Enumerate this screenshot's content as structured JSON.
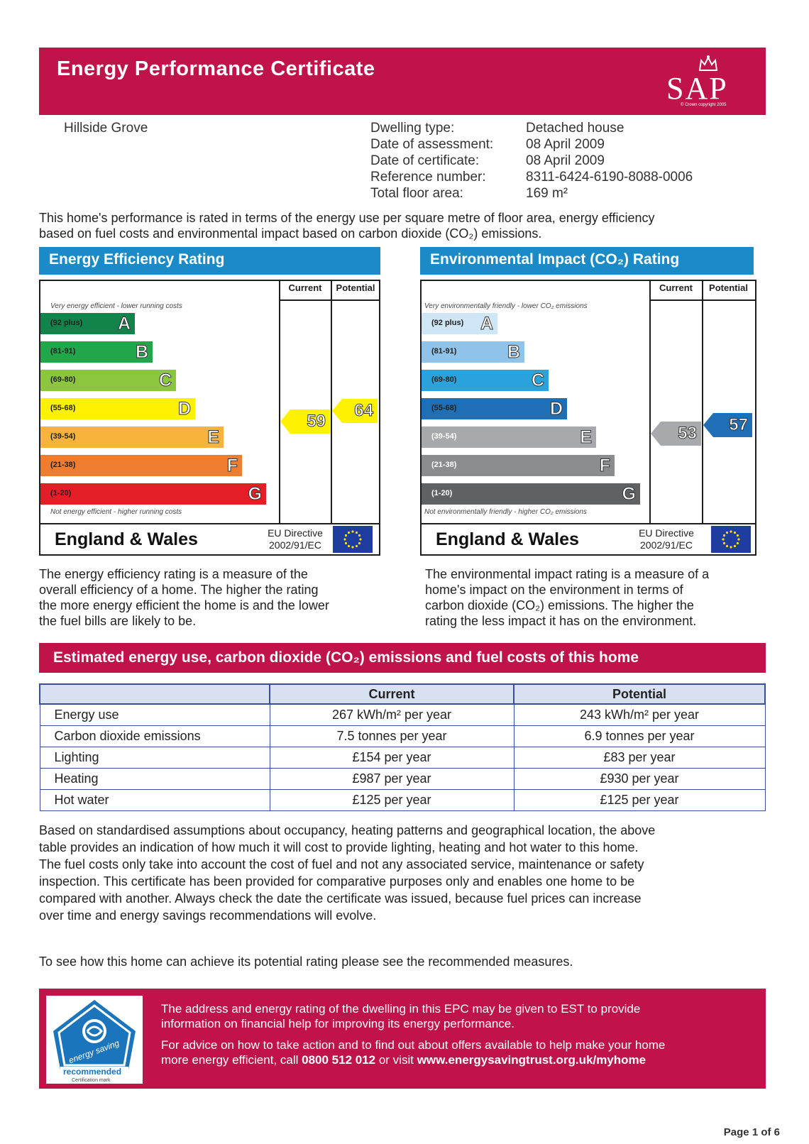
{
  "header": {
    "title": "Energy Performance Certificate",
    "logo_text": "SAP",
    "logo_copyright": "© Crown copyright 2005"
  },
  "property": {
    "address": "Hillside Grove",
    "fields": [
      {
        "label": "Dwelling type:",
        "value": "Detached house"
      },
      {
        "label": "Date of assessment:",
        "value": "08 April 2009"
      },
      {
        "label": "Date of certificate:",
        "value": "08 April 2009"
      },
      {
        "label": "Reference number:",
        "value": "8311-6424-6190-8088-0006"
      },
      {
        "label": "Total floor area:",
        "value": "169 m²"
      }
    ]
  },
  "intro": {
    "line1": "This home's performance is rated in terms of the energy use per square metre of floor area, energy efficiency",
    "line2": "based on fuel costs and environmental impact based on carbon dioxide  (CO₂) emissions."
  },
  "energy_chart": {
    "heading": "Energy Efficiency Rating",
    "col_current": "Current",
    "col_potential": "Potential",
    "top_note": "Very energy efficient - lower running costs",
    "bottom_note": "Not energy efficient - higher running costs",
    "bands": [
      {
        "range": "(92 plus)",
        "letter": "A",
        "color": "#12834a"
      },
      {
        "range": "(81-91)",
        "letter": "B",
        "color": "#22a64a"
      },
      {
        "range": "(69-80)",
        "letter": "C",
        "color": "#8cc63f"
      },
      {
        "range": "(55-68)",
        "letter": "D",
        "color": "#fff200"
      },
      {
        "range": "(39-54)",
        "letter": "E",
        "color": "#f8b33c"
      },
      {
        "range": "(21-38)",
        "letter": "F",
        "color": "#ef7d2f"
      },
      {
        "range": "(1-20)",
        "letter": "G",
        "color": "#e31e26"
      }
    ],
    "current": "59",
    "current_color": "#fff200",
    "potential": "64",
    "potential_color": "#fff200",
    "region": "England & Wales",
    "directive_line1": "EU Directive",
    "directive_line2": "2002/91/EC"
  },
  "env_chart": {
    "heading": "Environmental Impact (CO₂) Rating",
    "col_current": "Current",
    "col_potential": "Potential",
    "top_note": "Very environmentally friendly - lower  CO₂ emissions",
    "bottom_note": "Not environmentally friendly - higher  CO₂ emissions",
    "bands": [
      {
        "range": "(92 plus)",
        "letter": "A",
        "color": "#cfe6f6"
      },
      {
        "range": "(81-91)",
        "letter": "B",
        "color": "#8fc3ea"
      },
      {
        "range": "(69-80)",
        "letter": "C",
        "color": "#2aa3dc"
      },
      {
        "range": "(55-68)",
        "letter": "D",
        "color": "#1f6fb7"
      },
      {
        "range": "(39-54)",
        "letter": "E",
        "color": "#a7a9ac"
      },
      {
        "range": "(21-38)",
        "letter": "F",
        "color": "#8a8c8e"
      },
      {
        "range": "(1-20)",
        "letter": "G",
        "color": "#606163"
      }
    ],
    "current": "53",
    "current_color": "#a7a9ac",
    "potential": "57",
    "potential_color": "#1f6fb7",
    "region": "England & Wales",
    "directive_line1": "EU Directive",
    "directive_line2": "2002/91/EC"
  },
  "energy_desc": [
    "The energy efficiency rating is a measure of the",
    "overall efficiency of a home. The higher the rating",
    "the more energy efficient the home is and the lower",
    "the fuel bills are likely to be."
  ],
  "env_desc": [
    "The environmental impact rating is a measure of a",
    "home's impact on the environment in terms of",
    "carbon dioxide (CO₂) emissions. The higher the",
    "rating the less impact it has on the environment."
  ],
  "estimates": {
    "heading": "Estimated energy use, carbon dioxide (CO₂) emissions and fuel costs of this home",
    "col_current": "Current",
    "col_potential": "Potential",
    "rows": [
      {
        "label": "Energy use",
        "current": "267 kWh/m² per year",
        "potential": "243 kWh/m² per year"
      },
      {
        "label": "Carbon dioxide emissions",
        "current": "7.5 tonnes per year",
        "potential": "6.9 tonnes per year"
      },
      {
        "label": "Lighting",
        "current": "£154 per year",
        "potential": "£83 per year"
      },
      {
        "label": "Heating",
        "current": "£987 per year",
        "potential": "£930 per year"
      },
      {
        "label": "Hot water",
        "current": "£125 per year",
        "potential": "£125 per year"
      }
    ]
  },
  "explanation": [
    "Based on standardised assumptions about occupancy, heating patterns and geographical location, the above",
    "table provides an indication of how much it will cost to provide lighting, heating and hot water to this home.",
    "The fuel costs only take into account the cost of fuel and not any associated service, maintenance or safety",
    "inspection. This certificate has been provided for comparative purposes only and enables one home to be",
    "compared with another. Always check the date the certificate was issued, because fuel prices can increase",
    "over time and energy savings recommendations will evolve."
  ],
  "recommend_line": "To see how this home can achieve its potential rating please see the recommended measures.",
  "footer": {
    "line1": "The address and energy rating of the dwelling in this EPC may be given to EST to provide",
    "line2": "information on financial help for improving its energy performance.",
    "line3": "For advice on how to take action and to find out about offers available to help make your home",
    "line4_pre": "more energy efficient, call ",
    "phone": "0800 512 012",
    "line4_mid": " or visit ",
    "url": "www.energysavingtrust.org.uk/myhome",
    "logo_text1": "energy saving",
    "logo_text2": "recommended",
    "logo_text3": "Certification mark"
  },
  "page_number": "Page 1 of 6"
}
